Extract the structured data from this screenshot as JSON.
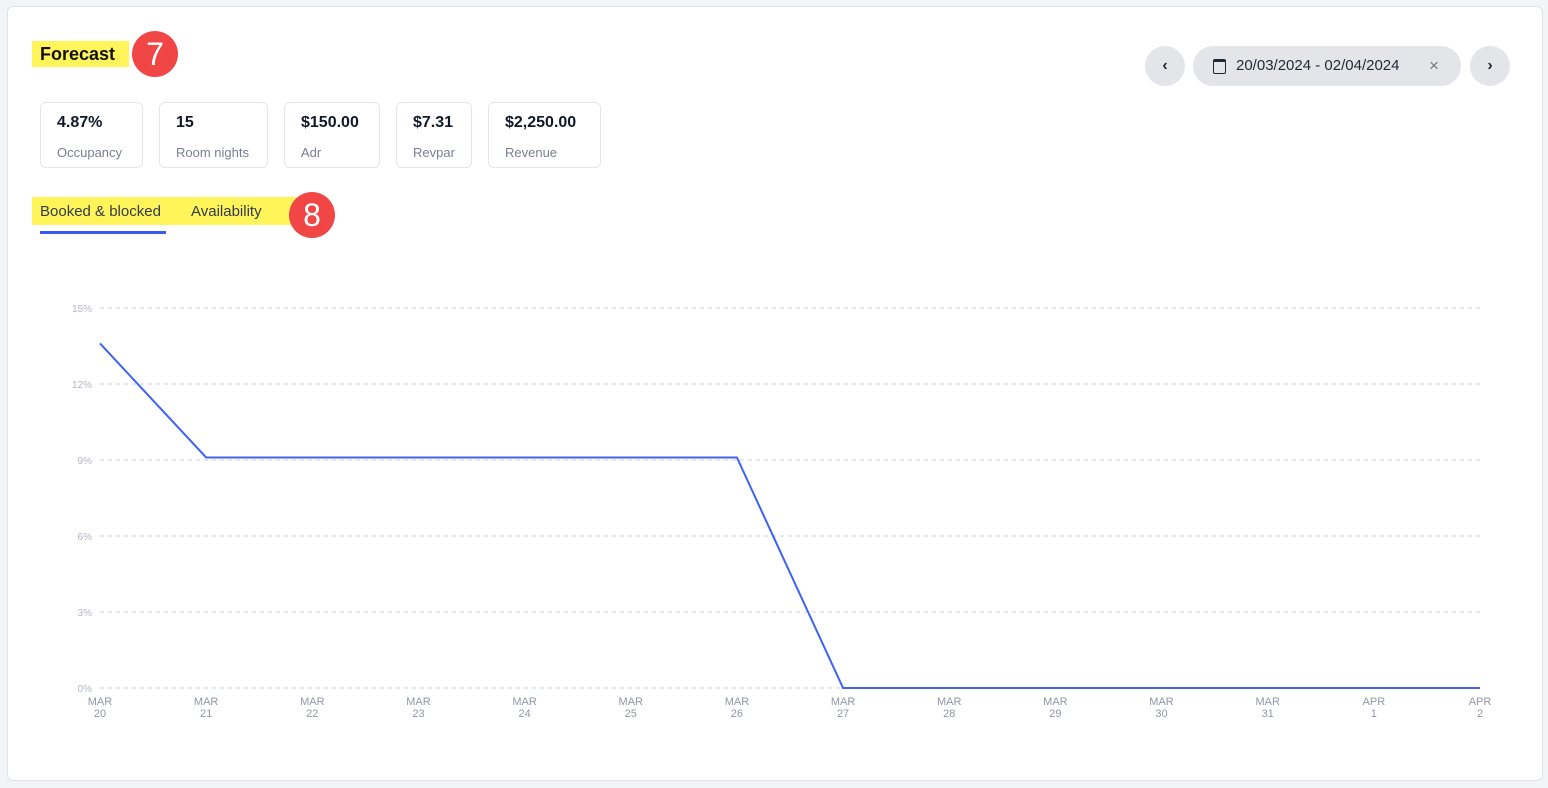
{
  "header": {
    "title": "Forecast",
    "badge_title": "7",
    "badge_tabs": "8"
  },
  "date_range": {
    "value": "20/03/2024 - 02/04/2024",
    "prev_icon": "chevron-left-icon",
    "next_icon": "chevron-right-icon",
    "calendar_icon": "calendar-icon",
    "clear_icon": "close-icon"
  },
  "metrics": [
    {
      "value": "4.87%",
      "label": "Occupancy"
    },
    {
      "value": "15",
      "label": "Room nights"
    },
    {
      "value": "$150.00",
      "label": "Adr"
    },
    {
      "value": "$7.31",
      "label": "Revpar"
    },
    {
      "value": "$2,250.00",
      "label": "Revenue"
    }
  ],
  "tabs": [
    {
      "label": "Booked & blocked",
      "active": true
    },
    {
      "label": "Availability",
      "active": false
    }
  ],
  "chart_data": {
    "type": "line",
    "categories": [
      [
        "MAR",
        "20"
      ],
      [
        "MAR",
        "21"
      ],
      [
        "MAR",
        "22"
      ],
      [
        "MAR",
        "23"
      ],
      [
        "MAR",
        "24"
      ],
      [
        "MAR",
        "25"
      ],
      [
        "MAR",
        "26"
      ],
      [
        "MAR",
        "27"
      ],
      [
        "MAR",
        "28"
      ],
      [
        "MAR",
        "29"
      ],
      [
        "MAR",
        "30"
      ],
      [
        "MAR",
        "31"
      ],
      [
        "APR",
        "1"
      ],
      [
        "APR",
        "2"
      ]
    ],
    "values": [
      13.6,
      9.1,
      9.1,
      9.1,
      9.1,
      9.1,
      9.1,
      0,
      0,
      0,
      0,
      0,
      0,
      0
    ],
    "yticks": [
      "0%",
      "3%",
      "6%",
      "9%",
      "12%",
      "15%"
    ],
    "ylim": [
      0,
      15
    ],
    "grid": true,
    "color": "#3d63f5"
  }
}
